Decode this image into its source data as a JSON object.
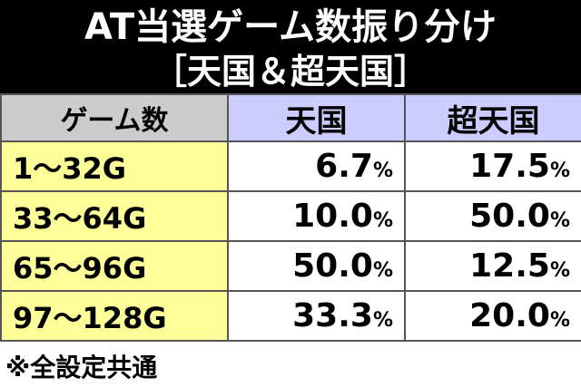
{
  "header": {
    "title": "AT当選ゲーム数振り分け",
    "subtitle": "［天国＆超天国］"
  },
  "table": {
    "columns": [
      "ゲーム数",
      "天国",
      "超天国"
    ],
    "rows": [
      [
        "1～32G",
        {
          "number": "6.7",
          "unit": "%"
        },
        {
          "number": "17.5",
          "unit": "%"
        }
      ],
      [
        "33～64G",
        {
          "number": "10.0",
          "unit": "%"
        },
        {
          "number": "50.0",
          "unit": "%"
        }
      ],
      [
        "65～96G",
        {
          "number": "50.0",
          "unit": "%"
        },
        {
          "number": "12.5",
          "unit": "%"
        }
      ],
      [
        "97～128G",
        {
          "number": "33.3",
          "unit": "%"
        },
        {
          "number": "20.0",
          "unit": "%"
        }
      ]
    ]
  },
  "footer": {
    "note": "※全設定共通"
  }
}
